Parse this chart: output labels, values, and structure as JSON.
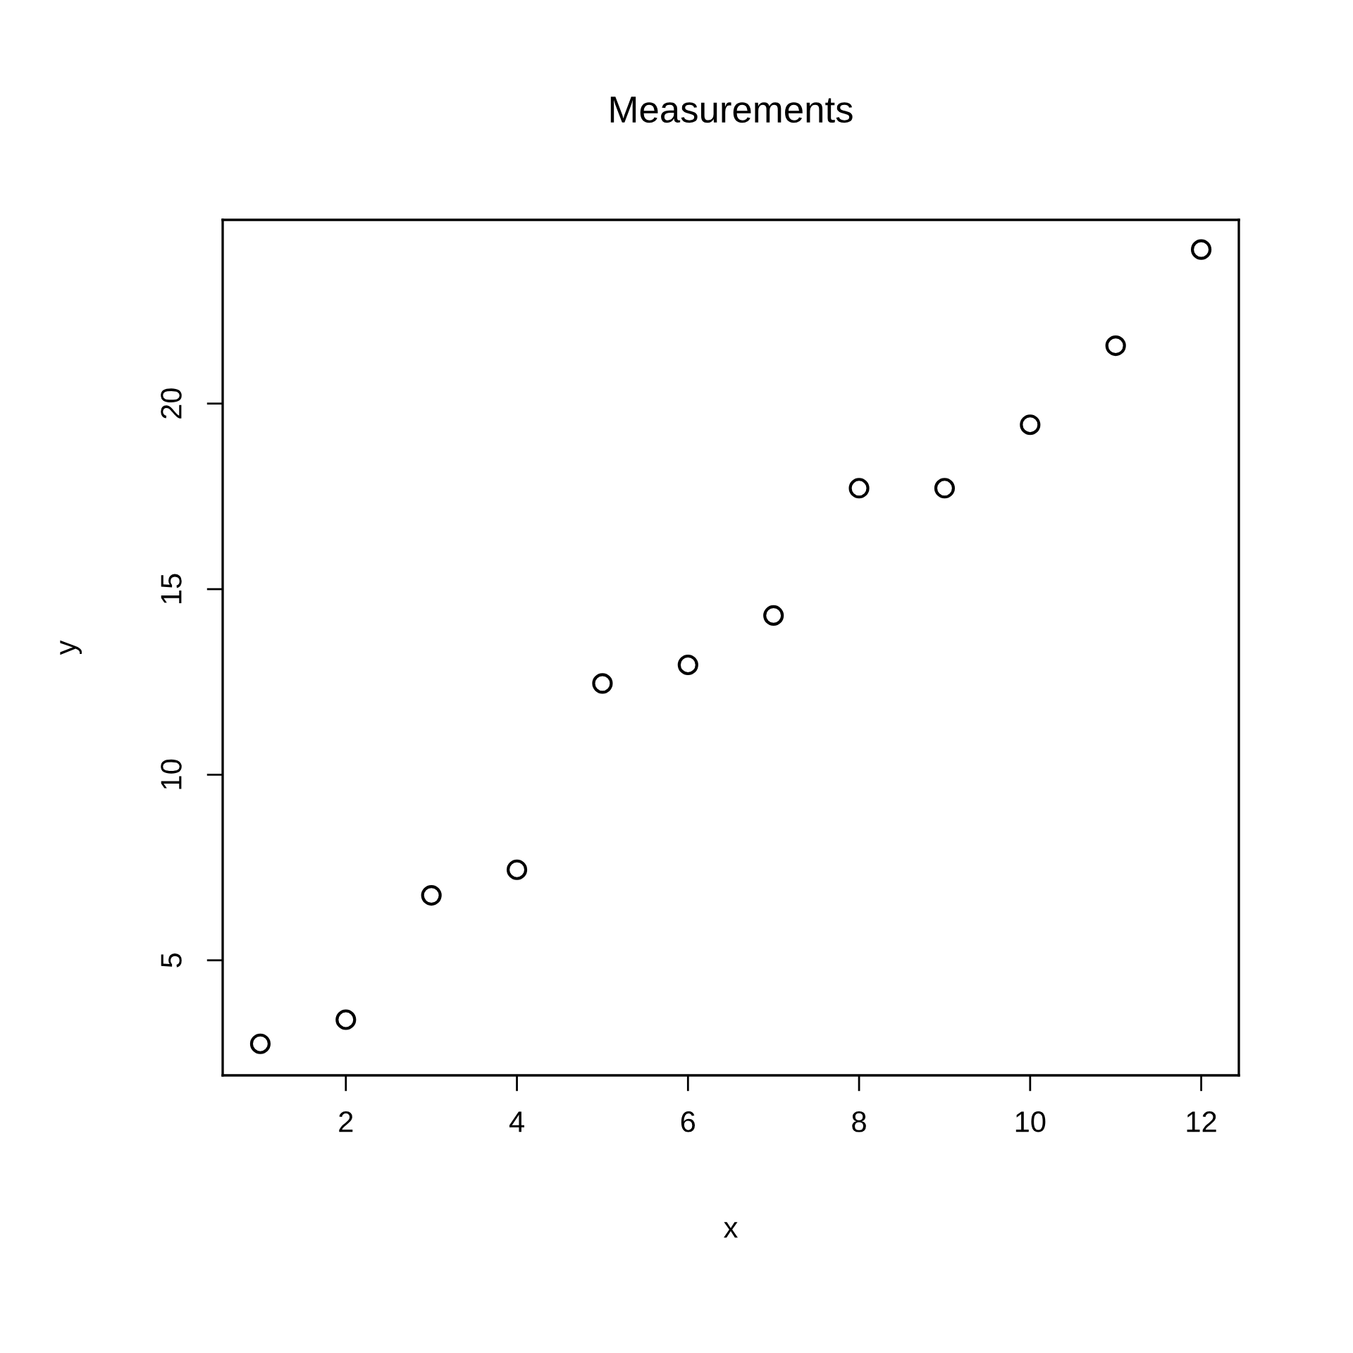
{
  "chart_data": {
    "type": "scatter",
    "title": "Measurements",
    "xlabel": "x",
    "ylabel": "y",
    "x": [
      1,
      2,
      3,
      4,
      5,
      6,
      7,
      8,
      9,
      10,
      11,
      12
    ],
    "values": [
      2.75,
      3.4,
      6.75,
      7.44,
      12.46,
      12.96,
      14.29,
      17.72,
      17.72,
      19.43,
      21.56,
      24.15
    ],
    "color": "#000000",
    "marker": "circle",
    "grid": false,
    "legend": false,
    "xlim": [
      0.56,
      12.44
    ],
    "ylim": [
      1.9,
      24.95
    ],
    "xticks": [
      2,
      4,
      6,
      8,
      10,
      12
    ],
    "yticks": [
      5,
      10,
      15,
      20
    ]
  }
}
